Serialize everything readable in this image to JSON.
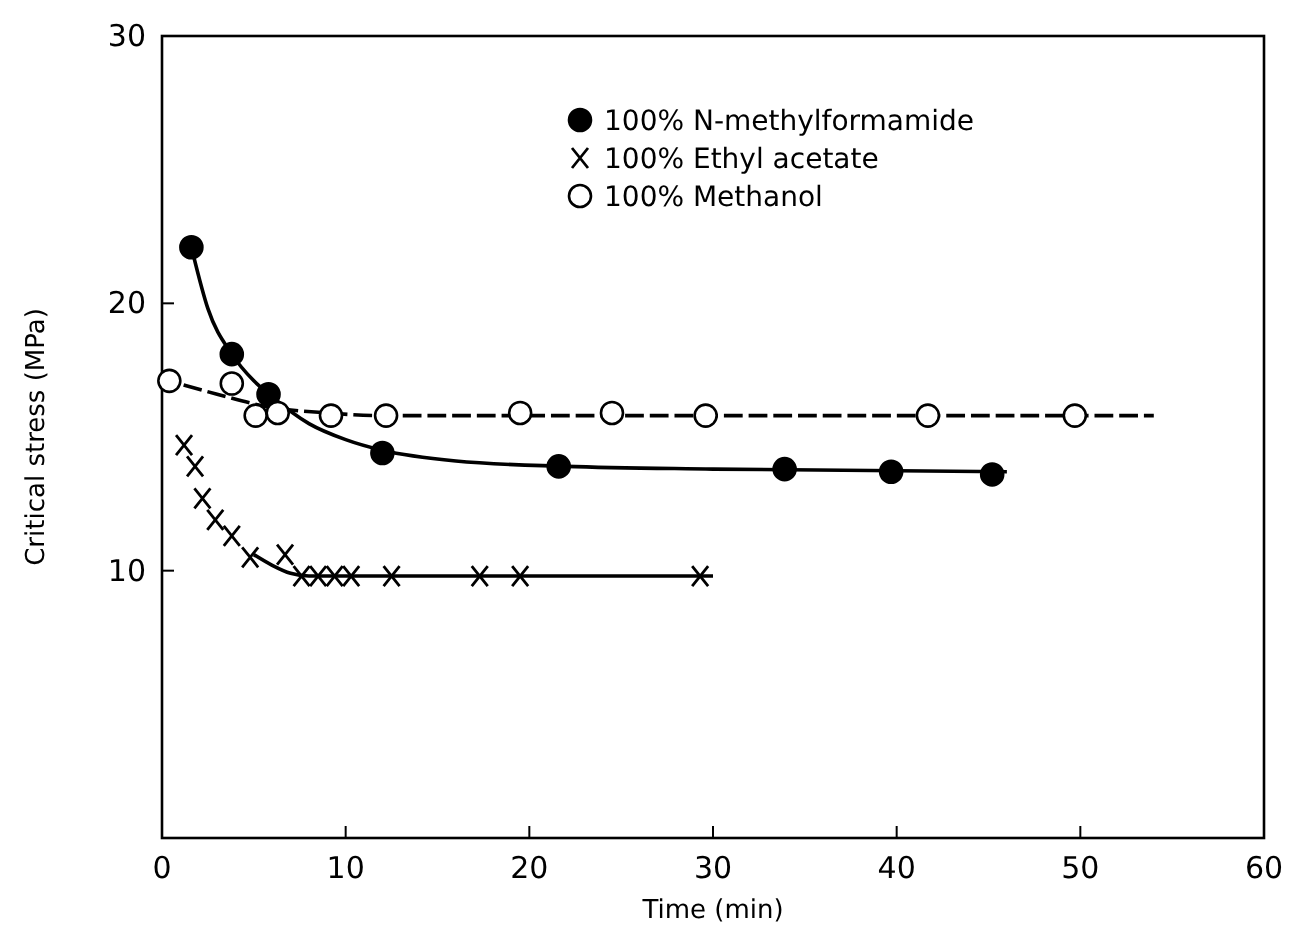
{
  "chart_data": {
    "type": "scatter",
    "xlabel": "Time (min)",
    "ylabel": "Critical stress (MPa)",
    "xlim": [
      0,
      60
    ],
    "xticks": [
      0,
      10,
      20,
      30,
      40,
      50,
      60
    ],
    "ylim": [
      0,
      30
    ],
    "yticks": [
      10,
      20,
      30
    ],
    "legend": "top right",
    "grid": false,
    "series": [
      {
        "name": "100% N-methylformamide",
        "type": "scatter",
        "marker": "circle",
        "color": "#000000",
        "x": [
          1.6,
          3.8,
          5.8,
          12.0,
          21.6,
          33.9,
          39.7,
          45.2
        ],
        "values": [
          22.1,
          18.1,
          16.6,
          14.4,
          13.9,
          13.8,
          13.7,
          13.6
        ]
      },
      {
        "name": "100% Ethyl acetate",
        "type": "scatter",
        "marker": "cross",
        "color": "#000000",
        "x": [
          1.2,
          1.8,
          2.2,
          2.9,
          3.8,
          4.8,
          6.7,
          7.6,
          8.5,
          9.4,
          10.3,
          12.5,
          17.3,
          19.5,
          29.3
        ],
        "values": [
          14.7,
          13.9,
          12.7,
          11.9,
          11.3,
          10.5,
          10.6,
          9.8,
          9.8,
          9.8,
          9.8,
          9.8,
          9.8,
          9.8,
          9.8
        ]
      },
      {
        "name": "100% Methanol",
        "type": "scatter",
        "marker": "circle",
        "color": "#ffffff",
        "x": [
          0.4,
          3.8,
          5.1,
          6.3,
          9.2,
          12.2,
          19.5,
          24.5,
          29.6,
          41.7,
          49.7
        ],
        "values": [
          17.1,
          17.0,
          15.8,
          15.9,
          15.8,
          15.8,
          15.9,
          15.9,
          15.8,
          15.8,
          15.8
        ]
      },
      {
        "type": "line",
        "marker": "none",
        "line_style": "solid",
        "color": "#000000",
        "x": [
          1.6,
          2.5,
          3.8,
          5,
          6,
          8,
          10,
          12,
          16,
          22,
          30,
          46
        ],
        "values": [
          22.1,
          19.8,
          18.1,
          17.1,
          16.5,
          15.5,
          14.9,
          14.5,
          14.1,
          13.9,
          13.8,
          13.7
        ]
      },
      {
        "type": "line",
        "marker": "none",
        "line_style": "solid",
        "color": "#000000",
        "x": [
          5,
          6,
          7,
          8,
          10,
          30
        ],
        "values": [
          10.6,
          10.2,
          9.9,
          9.8,
          9.8,
          9.8
        ]
      },
      {
        "type": "line",
        "marker": "none",
        "line_style": "dashed",
        "color": "#000000",
        "x": [
          0.4,
          3,
          6,
          9,
          12,
          54
        ],
        "values": [
          17.1,
          16.6,
          16.1,
          15.9,
          15.8,
          15.8
        ]
      }
    ]
  }
}
